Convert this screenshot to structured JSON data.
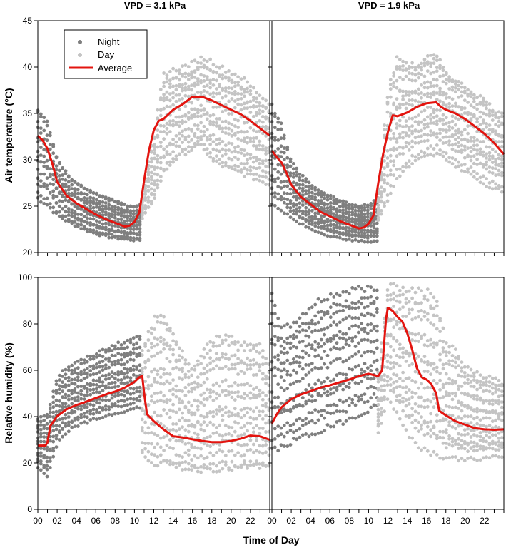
{
  "figure": {
    "xlabel": "Time of Day",
    "col_titles": [
      "VPD = 3.1 kPa",
      "VPD = 1.9 kPa"
    ],
    "legend": [
      {
        "label": "Night",
        "color": "#7f7f7f",
        "kind": "dot"
      },
      {
        "label": "Day",
        "color": "#c4c4c4",
        "kind": "dot"
      },
      {
        "label": "Average",
        "color": "#e3140f",
        "kind": "line"
      }
    ],
    "x_tick_labels": [
      "00",
      "02",
      "04",
      "06",
      "08",
      "10",
      "12",
      "14",
      "16",
      "18",
      "20",
      "22"
    ]
  },
  "chart_data": [
    {
      "type": "scatter",
      "title": "VPD = 3.1 kPa",
      "xlabel": "Time of Day",
      "ylabel": "Air temperature (°C)",
      "xlim": [
        0,
        24
      ],
      "ylim": [
        20,
        45
      ],
      "yticks": [
        20,
        25,
        30,
        35,
        40,
        45
      ],
      "x_tick_labels": [
        "00",
        "02",
        "04",
        "06",
        "08",
        "10",
        "12",
        "14",
        "16",
        "18",
        "20",
        "22"
      ],
      "series": [
        {
          "name": "Average",
          "color": "#e3140f",
          "kind": "line",
          "x": [
            0,
            0.5,
            1,
            1.5,
            2,
            3,
            4,
            5,
            6,
            7,
            8,
            9,
            9.5,
            10,
            10.5,
            11,
            11.5,
            12,
            12.5,
            13,
            13.5,
            14,
            15,
            16,
            17,
            18,
            19,
            20,
            21,
            22,
            23,
            24
          ],
          "y": [
            32.6,
            32.1,
            31.2,
            29.6,
            27.6,
            26.1,
            25.3,
            24.7,
            24.1,
            23.6,
            23.2,
            22.8,
            22.9,
            23.3,
            24.3,
            27.8,
            31.0,
            33.2,
            34.2,
            34.4,
            34.9,
            35.4,
            36.0,
            36.8,
            36.8,
            36.4,
            35.9,
            35.4,
            34.9,
            34.2,
            33.4,
            32.6
          ]
        },
        {
          "name": "Night",
          "color": "#7f7f7f",
          "kind": "band",
          "x": [
            0,
            1,
            2,
            3,
            4,
            5,
            6,
            7,
            8,
            9,
            10,
            10.8
          ],
          "lo": [
            25.5,
            24.8,
            23.8,
            23.2,
            22.7,
            22.2,
            21.9,
            21.6,
            21.4,
            21.3,
            21.2,
            21.2
          ],
          "hi": [
            36.0,
            34.5,
            30.5,
            28.8,
            27.8,
            27.2,
            26.7,
            26.2,
            25.8,
            25.4,
            25.2,
            25.4
          ]
        },
        {
          "name": "Day",
          "color": "#c4c4c4",
          "kind": "band",
          "x": [
            10.8,
            12,
            13,
            14,
            15,
            16,
            17,
            18,
            19,
            20,
            21,
            22,
            23,
            24
          ],
          "lo": [
            23.5,
            25.5,
            28.2,
            29.5,
            30.3,
            30.8,
            31.2,
            29.5,
            29.0,
            28.5,
            28.2,
            27.8,
            27.4,
            27.0
          ],
          "hi": [
            26.5,
            33.0,
            39.8,
            40.2,
            40.5,
            40.9,
            41.5,
            41.2,
            40.5,
            40.0,
            39.5,
            38.5,
            37.5,
            36.5
          ]
        }
      ]
    },
    {
      "type": "scatter",
      "title": "VPD = 1.9 kPa",
      "xlabel": "Time of Day",
      "ylabel": "Air temperature (°C)",
      "xlim": [
        0,
        24
      ],
      "ylim": [
        20,
        45
      ],
      "yticks": [
        20,
        25,
        30,
        35,
        40,
        45
      ],
      "x_tick_labels": [
        "00",
        "02",
        "04",
        "06",
        "08",
        "10",
        "12",
        "14",
        "16",
        "18",
        "20",
        "22"
      ],
      "series": [
        {
          "name": "Average",
          "color": "#e3140f",
          "kind": "line",
          "x": [
            0,
            0.5,
            1,
            1.5,
            2,
            3,
            4,
            5,
            6,
            7,
            8,
            9,
            9.5,
            10,
            10.5,
            11,
            11.5,
            12,
            12.5,
            13,
            14,
            15,
            16,
            17,
            17.5,
            18,
            19,
            20,
            21,
            22,
            23,
            24
          ],
          "y": [
            31.0,
            30.3,
            29.7,
            28.6,
            27.3,
            26.0,
            25.2,
            24.4,
            23.9,
            23.4,
            23.0,
            22.6,
            22.7,
            23.1,
            24.0,
            27.5,
            30.6,
            33.0,
            34.8,
            34.7,
            35.1,
            35.7,
            36.1,
            36.2,
            35.7,
            35.4,
            35.0,
            34.4,
            33.6,
            32.8,
            31.8,
            30.6
          ]
        },
        {
          "name": "Night",
          "color": "#7f7f7f",
          "kind": "band",
          "x": [
            0,
            1,
            2,
            3,
            4,
            5,
            6,
            7,
            8,
            9,
            10,
            11
          ],
          "lo": [
            25.0,
            24.5,
            23.6,
            23.0,
            22.5,
            22.1,
            21.7,
            21.5,
            21.3,
            21.2,
            21.1,
            21.2
          ],
          "hi": [
            36.0,
            34.0,
            30.0,
            28.5,
            27.5,
            26.8,
            26.2,
            25.8,
            25.4,
            25.1,
            25.3,
            26.0
          ]
        },
        {
          "name": "Day",
          "color": "#c4c4c4",
          "kind": "band",
          "x": [
            11,
            12,
            13,
            14,
            15,
            16,
            17,
            18,
            19,
            20,
            21,
            22,
            23,
            24
          ],
          "lo": [
            23.5,
            25.5,
            28.0,
            29.0,
            29.8,
            30.2,
            30.5,
            30.0,
            29.2,
            28.6,
            28.0,
            27.2,
            26.8,
            26.4
          ],
          "hi": [
            27.0,
            38.0,
            41.8,
            41.0,
            40.6,
            41.6,
            41.8,
            40.0,
            39.0,
            38.4,
            37.6,
            37.0,
            35.8,
            35.2
          ]
        }
      ]
    },
    {
      "type": "scatter",
      "title": "VPD = 3.1 kPa",
      "xlabel": "Time of Day",
      "ylabel": "Relative humidity (%)",
      "xlim": [
        0,
        24
      ],
      "ylim": [
        0,
        100
      ],
      "yticks": [
        0,
        20,
        40,
        60,
        80,
        100
      ],
      "x_tick_labels": [
        "00",
        "02",
        "04",
        "06",
        "08",
        "10",
        "12",
        "14",
        "16",
        "18",
        "20",
        "22"
      ],
      "series": [
        {
          "name": "Average",
          "color": "#e3140f",
          "kind": "line",
          "x": [
            0,
            0.8,
            1,
            1.3,
            2,
            3,
            4,
            5,
            6,
            7,
            8,
            9,
            10,
            10.5,
            10.8,
            11,
            11.3,
            12,
            13,
            14,
            15,
            16,
            17,
            18,
            19,
            20,
            21,
            22,
            23,
            24
          ],
          "y": [
            27.5,
            27.5,
            29.0,
            36.0,
            40.2,
            43.2,
            45.0,
            46.4,
            48.0,
            49.5,
            50.8,
            52.5,
            55.0,
            57.0,
            57.5,
            50.0,
            41.0,
            38.0,
            34.5,
            31.5,
            31.0,
            30.2,
            29.5,
            29.0,
            29.0,
            29.5,
            30.5,
            31.8,
            31.5,
            30.0
          ]
        },
        {
          "name": "Night",
          "color": "#7f7f7f",
          "kind": "band",
          "x": [
            0,
            1,
            2,
            3,
            4,
            5,
            6,
            7,
            8,
            9,
            10,
            10.8
          ],
          "lo": [
            18.0,
            14.0,
            28.0,
            33.0,
            35.5,
            37.0,
            38.5,
            40.0,
            41.0,
            42.0,
            43.0,
            44.0
          ],
          "hi": [
            40.0,
            42.0,
            58.0,
            62.0,
            64.0,
            66.0,
            68.0,
            70.0,
            72.0,
            73.0,
            75.0,
            76.0
          ]
        },
        {
          "name": "Day",
          "color": "#c4c4c4",
          "kind": "band",
          "x": [
            10.8,
            12,
            13,
            14,
            15,
            16,
            17,
            18,
            19,
            20,
            21,
            22,
            23,
            24
          ],
          "lo": [
            22.0,
            16.0,
            15.5,
            15.0,
            15.0,
            14.5,
            14.0,
            14.0,
            14.0,
            14.0,
            14.5,
            15.0,
            15.0,
            15.0
          ],
          "hi": [
            70.0,
            86.0,
            88.0,
            79.0,
            70.0,
            62.0,
            70.0,
            76.0,
            78.0,
            77.0,
            75.0,
            75.0,
            74.0,
            64.0
          ]
        }
      ]
    },
    {
      "type": "scatter",
      "title": "VPD = 1.9 kPa",
      "xlabel": "Time of Day",
      "ylabel": "Relative humidity (%)",
      "xlim": [
        0,
        24
      ],
      "ylim": [
        0,
        100
      ],
      "yticks": [
        0,
        20,
        40,
        60,
        80,
        100
      ],
      "x_tick_labels": [
        "00",
        "02",
        "04",
        "06",
        "08",
        "10",
        "12",
        "14",
        "16",
        "18",
        "20",
        "22"
      ],
      "series": [
        {
          "name": "Average",
          "color": "#e3140f",
          "kind": "line",
          "x": [
            0,
            0.5,
            1,
            2,
            3,
            4,
            5,
            6,
            7,
            8,
            9,
            10,
            10.5,
            11,
            11.4,
            11.8,
            12,
            12.5,
            13,
            13.5,
            14,
            14.5,
            15,
            15.5,
            16,
            16.5,
            17,
            17.3,
            18,
            19,
            20,
            21,
            22,
            23,
            24
          ],
          "y": [
            37.0,
            41.0,
            44.0,
            47.5,
            49.5,
            51.0,
            52.5,
            53.5,
            54.8,
            56.0,
            57.5,
            58.5,
            58.0,
            57.5,
            60.0,
            82.0,
            87.0,
            85.5,
            83.0,
            81.0,
            76.0,
            69.0,
            61.0,
            57.0,
            56.0,
            54.0,
            50.0,
            42.5,
            40.5,
            38.0,
            36.5,
            35.0,
            34.5,
            34.3,
            34.5
          ]
        },
        {
          "name": "Night",
          "color": "#7f7f7f",
          "kind": "band",
          "x": [
            0,
            1,
            2,
            3,
            4,
            5,
            6,
            7,
            8,
            9,
            10,
            11
          ],
          "lo": [
            24.0,
            26.0,
            28.0,
            30.0,
            31.5,
            33.0,
            34.5,
            36.0,
            38.0,
            40.0,
            42.0,
            44.0
          ],
          "hi": [
            98.0,
            80.0,
            82.0,
            86.0,
            90.0,
            93.0,
            95.0,
            96.0,
            97.0,
            98.0,
            98.0,
            97.0
          ]
        },
        {
          "name": "Day",
          "color": "#c4c4c4",
          "kind": "band",
          "x": [
            11,
            12,
            13,
            14,
            15,
            16,
            17,
            18,
            19,
            20,
            21,
            22,
            23,
            24
          ],
          "lo": [
            32.0,
            48.0,
            40.0,
            32.0,
            27.0,
            24.0,
            22.5,
            21.5,
            21.0,
            21.0,
            21.0,
            21.5,
            22.0,
            22.0
          ],
          "hi": [
            60.0,
            98.0,
            97.0,
            96.0,
            96.0,
            95.0,
            94.0,
            72.0,
            70.0,
            62.0,
            60.0,
            58.0,
            57.0,
            55.0
          ]
        }
      ]
    }
  ]
}
